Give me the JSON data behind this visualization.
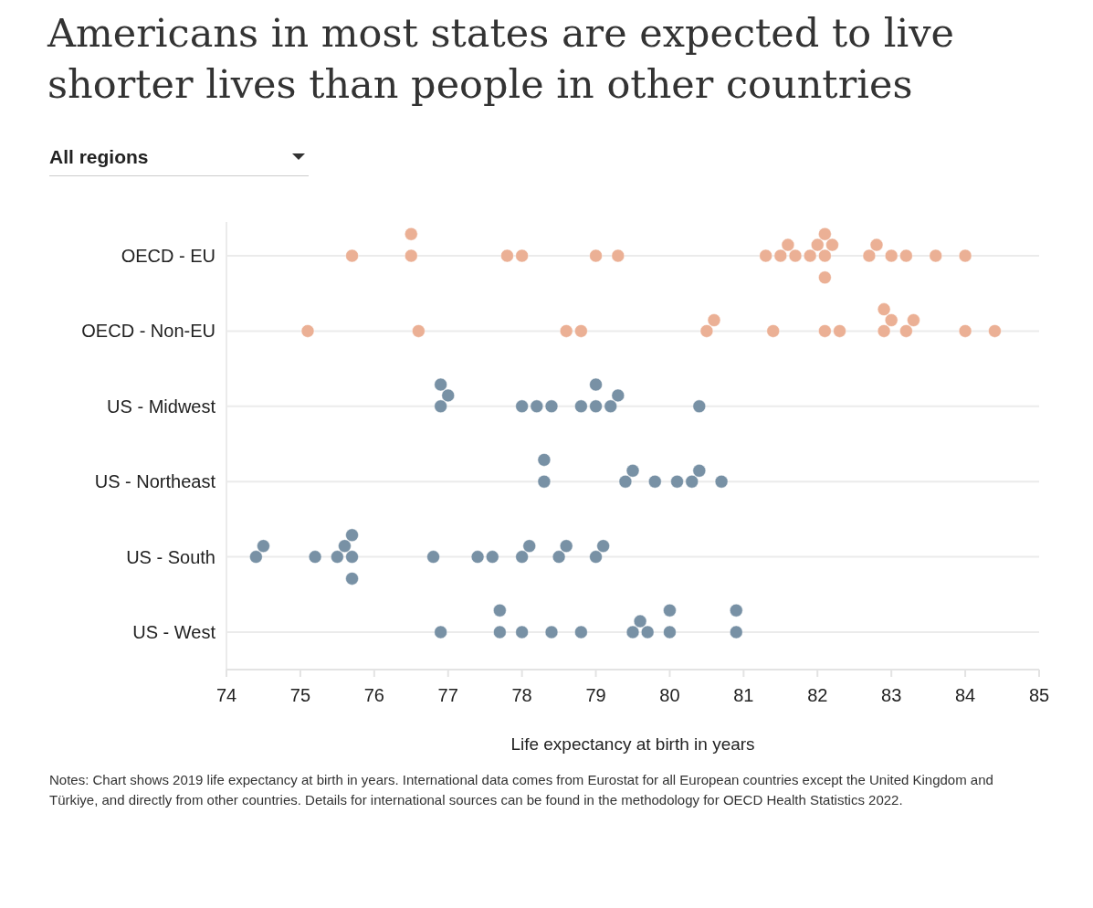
{
  "chart_data": {
    "type": "scatter",
    "orientation": "horizontal",
    "title": "Americans in most states are expected to live shorter lives than people in other countries",
    "xlabel": "Life expectancy at birth in years",
    "annotations": [
      "All regions",
      "Notes: Chart shows 2019 life expectancy at birth in years. International data comes from Eurostat for all European countries except the United Kingdom and Türkiye, and directly from other countries. Details for international sources can be found in the methodology for OECD Health Statistics 2022."
    ],
    "categories": [
      "OECD - EU",
      "OECD - Non-EU",
      "US - Midwest",
      "US - Northeast",
      "US - South",
      "US - West"
    ],
    "xlim": [
      74,
      85
    ],
    "xticks": [
      74,
      75,
      76,
      77,
      78,
      79,
      80,
      81,
      82,
      83,
      84,
      85
    ],
    "grid": "y",
    "marker": "circle",
    "series": [
      {
        "color": "#ebb095",
        "x": [
          "OECD - EU",
          "OECD - EU",
          "OECD - EU",
          "OECD - EU",
          "OECD - EU",
          "OECD - EU",
          "OECD - EU",
          "OECD - EU",
          "OECD - EU",
          "OECD - EU",
          "OECD - EU",
          "OECD - EU",
          "OECD - EU",
          "OECD - EU",
          "OECD - EU",
          "OECD - EU",
          "OECD - EU",
          "OECD - EU",
          "OECD - EU",
          "OECD - EU",
          "OECD - EU",
          "OECD - EU",
          "OECD - EU",
          "OECD - Non-EU",
          "OECD - Non-EU",
          "OECD - Non-EU",
          "OECD - Non-EU",
          "OECD - Non-EU",
          "OECD - Non-EU",
          "OECD - Non-EU",
          "OECD - Non-EU",
          "OECD - Non-EU",
          "OECD - Non-EU",
          "OECD - Non-EU",
          "OECD - Non-EU",
          "OECD - Non-EU",
          "OECD - Non-EU",
          "OECD - Non-EU",
          "OECD - Non-EU"
        ],
        "values": [
          75.7,
          76.5,
          76.5,
          77.8,
          78.0,
          79.0,
          79.3,
          81.3,
          81.5,
          81.6,
          81.7,
          81.9,
          82.0,
          82.1,
          82.1,
          82.1,
          82.2,
          82.7,
          82.8,
          83.0,
          83.2,
          83.6,
          84.0,
          75.1,
          76.6,
          78.6,
          78.8,
          80.5,
          80.6,
          81.4,
          82.1,
          82.3,
          82.9,
          82.9,
          83.0,
          83.2,
          83.3,
          84.0,
          84.4
        ]
      },
      {
        "color": "#7891a5",
        "x": [
          "US - Midwest",
          "US - Midwest",
          "US - Midwest",
          "US - Midwest",
          "US - Midwest",
          "US - Midwest",
          "US - Midwest",
          "US - Midwest",
          "US - Midwest",
          "US - Midwest",
          "US - Midwest",
          "US - Midwest",
          "US - Northeast",
          "US - Northeast",
          "US - Northeast",
          "US - Northeast",
          "US - Northeast",
          "US - Northeast",
          "US - Northeast",
          "US - Northeast",
          "US - Northeast",
          "US - South",
          "US - South",
          "US - South",
          "US - South",
          "US - South",
          "US - South",
          "US - South",
          "US - South",
          "US - South",
          "US - South",
          "US - South",
          "US - South",
          "US - South",
          "US - South",
          "US - South",
          "US - South",
          "US - South",
          "US - West",
          "US - West",
          "US - West",
          "US - West",
          "US - West",
          "US - West",
          "US - West",
          "US - West",
          "US - West",
          "US - West",
          "US - West",
          "US - West",
          "US - West"
        ],
        "values": [
          76.9,
          77.0,
          76.9,
          78.0,
          78.2,
          78.4,
          78.8,
          79.0,
          79.0,
          79.2,
          79.3,
          80.4,
          78.3,
          78.3,
          79.4,
          79.5,
          79.8,
          80.1,
          80.3,
          80.4,
          80.7,
          74.4,
          74.5,
          75.2,
          75.5,
          75.7,
          75.7,
          75.6,
          75.7,
          76.8,
          77.4,
          77.6,
          78.0,
          78.1,
          78.5,
          78.6,
          79.0,
          79.1,
          76.9,
          77.7,
          77.7,
          78.0,
          78.4,
          78.8,
          79.5,
          79.6,
          79.7,
          80.0,
          80.0,
          80.9,
          80.9
        ]
      }
    ]
  }
}
